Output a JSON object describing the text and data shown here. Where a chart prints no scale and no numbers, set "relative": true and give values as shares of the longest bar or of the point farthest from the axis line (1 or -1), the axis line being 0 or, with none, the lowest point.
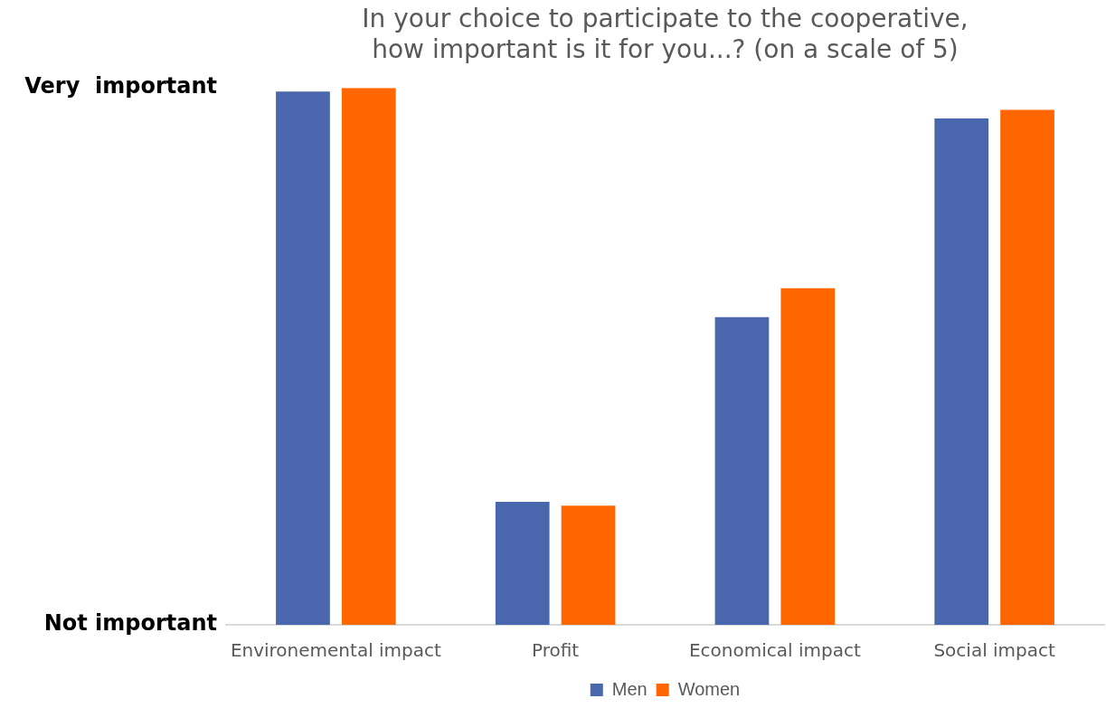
{
  "chart_data": {
    "type": "bar",
    "title": "In your choice to participate to the cooperative,\nhow important is it for you...? (on a scale of 5)",
    "categories": [
      "Environemental impact",
      "Profit",
      "Economical impact",
      "Social impact"
    ],
    "series": [
      {
        "name": "Men",
        "color": "#4a67ad",
        "values": [
          0.993,
          0.229,
          0.573,
          0.943
        ]
      },
      {
        "name": "Women",
        "color": "#ff6600",
        "values": [
          1,
          0.222,
          0.627,
          0.959
        ]
      }
    ],
    "relative": true,
    "annotations": [
      "Very  important",
      "Not important"
    ],
    "legend": "bottom"
  }
}
